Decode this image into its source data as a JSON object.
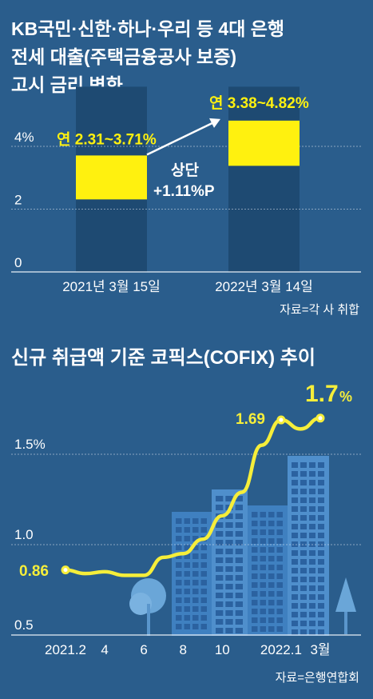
{
  "colors": {
    "background": "#2a5d8c",
    "bar": "#1e4a72",
    "highlight": "#fff10f",
    "line": "#f6ee3a",
    "text": "#ffffff",
    "grid": "#e8eef5",
    "building": "#3f80c0",
    "building_window": "#2b62a0",
    "tree": "#6aa6d8"
  },
  "chart_data": [
    {
      "type": "bar",
      "title": "KB국민·신한·하나·우리 등 4대 은행 전세 대출(주택금융공사 보증) 고시 금리 변화",
      "categories": [
        "2021년 3월 15일",
        "2022년 3월 14일"
      ],
      "ranges": [
        {
          "low": 2.31,
          "high": 3.71,
          "label": "연 2.31~3.71%"
        },
        {
          "low": 3.38,
          "high": 4.82,
          "label": "연 3.38~4.82%"
        }
      ],
      "y_ticks": [
        "0",
        "2",
        "4%"
      ],
      "y_tick_values": [
        0,
        2,
        4
      ],
      "ylim": [
        0,
        5.9
      ],
      "annotation": {
        "line1": "상단",
        "line2": "+1.11%P"
      },
      "source": "자료=각 사 취합"
    },
    {
      "type": "line",
      "title": "신규 취급액 기준 코픽스(COFIX) 추이",
      "x": [
        "2021.2",
        "2021.3",
        "2021.4",
        "2021.5",
        "2021.6",
        "2021.7",
        "2021.8",
        "2021.9",
        "2021.10",
        "2021.11",
        "2021.12",
        "2022.1",
        "2022.2",
        "2022.3"
      ],
      "values": [
        0.86,
        0.84,
        0.85,
        0.83,
        0.83,
        0.93,
        0.95,
        1.03,
        1.16,
        1.29,
        1.55,
        1.69,
        1.64,
        1.7
      ],
      "x_ticks": [
        "2021.2",
        "4",
        "6",
        "8",
        "10",
        "2022.1",
        "3월"
      ],
      "x_tick_index": [
        0,
        2,
        4,
        6,
        8,
        11,
        13
      ],
      "y_ticks": [
        "0.5",
        "1.0",
        "1.5%"
      ],
      "y_tick_values": [
        0.5,
        1.0,
        1.5
      ],
      "ylim": [
        0.5,
        1.8
      ],
      "labels": {
        "first": "0.86",
        "peak": "1.69",
        "last": "1.7",
        "last_unit": "%"
      },
      "source": "자료=은행연합회"
    }
  ]
}
